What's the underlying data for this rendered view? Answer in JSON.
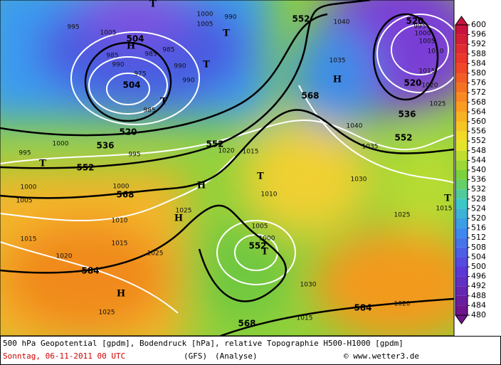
{
  "colorbar": {
    "ticks": [
      600,
      596,
      592,
      588,
      584,
      580,
      576,
      572,
      568,
      564,
      560,
      556,
      552,
      548,
      544,
      540,
      536,
      532,
      528,
      524,
      520,
      516,
      512,
      508,
      504,
      500,
      496,
      492,
      488,
      484,
      480
    ]
  },
  "caption": {
    "line1": "500 hPa Geopotential [gpdm], Bodendruck [hPa], relative Topographie H500-H1000 [gpdm]",
    "date": "Sonntag, 06-11-2011  00 UTC",
    "model": "(GFS)",
    "analysis": "(Analyse)",
    "credit": "© www.wetter3.de"
  },
  "geopotential_labels": [
    552,
    504,
    504,
    520,
    536,
    552,
    552,
    568,
    568,
    536,
    552,
    520,
    520,
    552,
    584,
    584,
    568
  ],
  "pressure_labels": [
    995,
    1005,
    985,
    990,
    985,
    985,
    975,
    990,
    985,
    990,
    1000,
    1005,
    990,
    995,
    1000,
    995,
    1020,
    1015,
    1010,
    1025,
    1000,
    1005,
    1000,
    1010,
    1015,
    1020,
    1015,
    1025,
    1025,
    1005,
    1000,
    1030,
    1035,
    1040,
    1035,
    1040,
    1025,
    1015,
    1030,
    1015,
    1020,
    1000,
    995,
    1005,
    1010,
    1015,
    1020,
    1025
  ],
  "symbols": [
    "T",
    "H",
    "T",
    "T",
    "T",
    "H",
    "T",
    "H",
    "H",
    "T",
    "T",
    "H",
    "T"
  ]
}
